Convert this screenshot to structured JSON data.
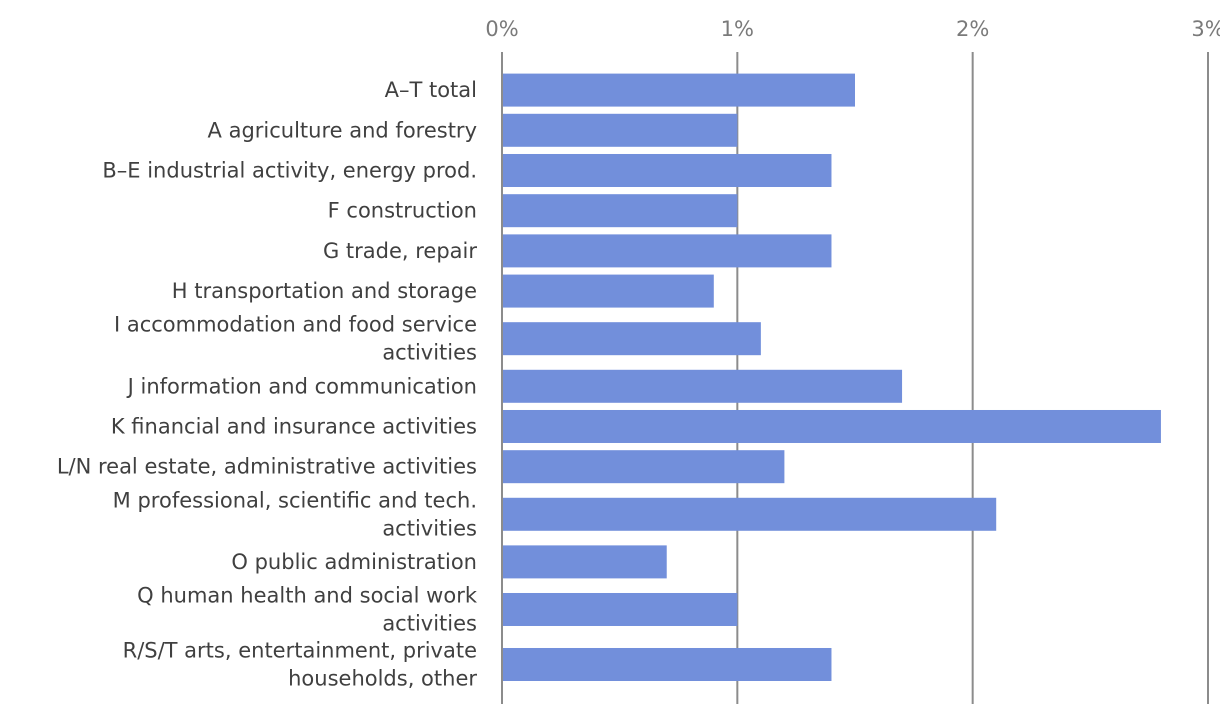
{
  "chart_data": {
    "type": "bar",
    "orientation": "horizontal",
    "title": "",
    "xlabel": "",
    "ylabel": "",
    "xlim": [
      0,
      3
    ],
    "x_ticks": [
      0,
      1,
      2,
      3
    ],
    "x_tick_labels": [
      "0%",
      "1%",
      "2%",
      "3%"
    ],
    "x_axis_position": "top",
    "grid": true,
    "bar_color": "#728fdb",
    "categories": [
      [
        "A–T total"
      ],
      [
        "A agriculture and forestry"
      ],
      [
        "B–E industrial activity, energy prod."
      ],
      [
        "F construction"
      ],
      [
        "G trade, repair"
      ],
      [
        "H transportation and storage"
      ],
      [
        "I accommodation and food service",
        "activities"
      ],
      [
        "J information and communication"
      ],
      [
        "K financial and insurance activities"
      ],
      [
        "L/N real estate, administrative activities"
      ],
      [
        "M professional, scientific and tech.",
        "activities"
      ],
      [
        "O public administration"
      ],
      [
        "Q human health and social work",
        "activities"
      ],
      [
        "R/S/T arts, entertainment, private",
        "households, other"
      ]
    ],
    "values": [
      1.5,
      1.0,
      1.4,
      1.0,
      1.4,
      0.9,
      1.1,
      1.7,
      2.8,
      1.2,
      2.1,
      0.7,
      1.0,
      1.4
    ]
  }
}
